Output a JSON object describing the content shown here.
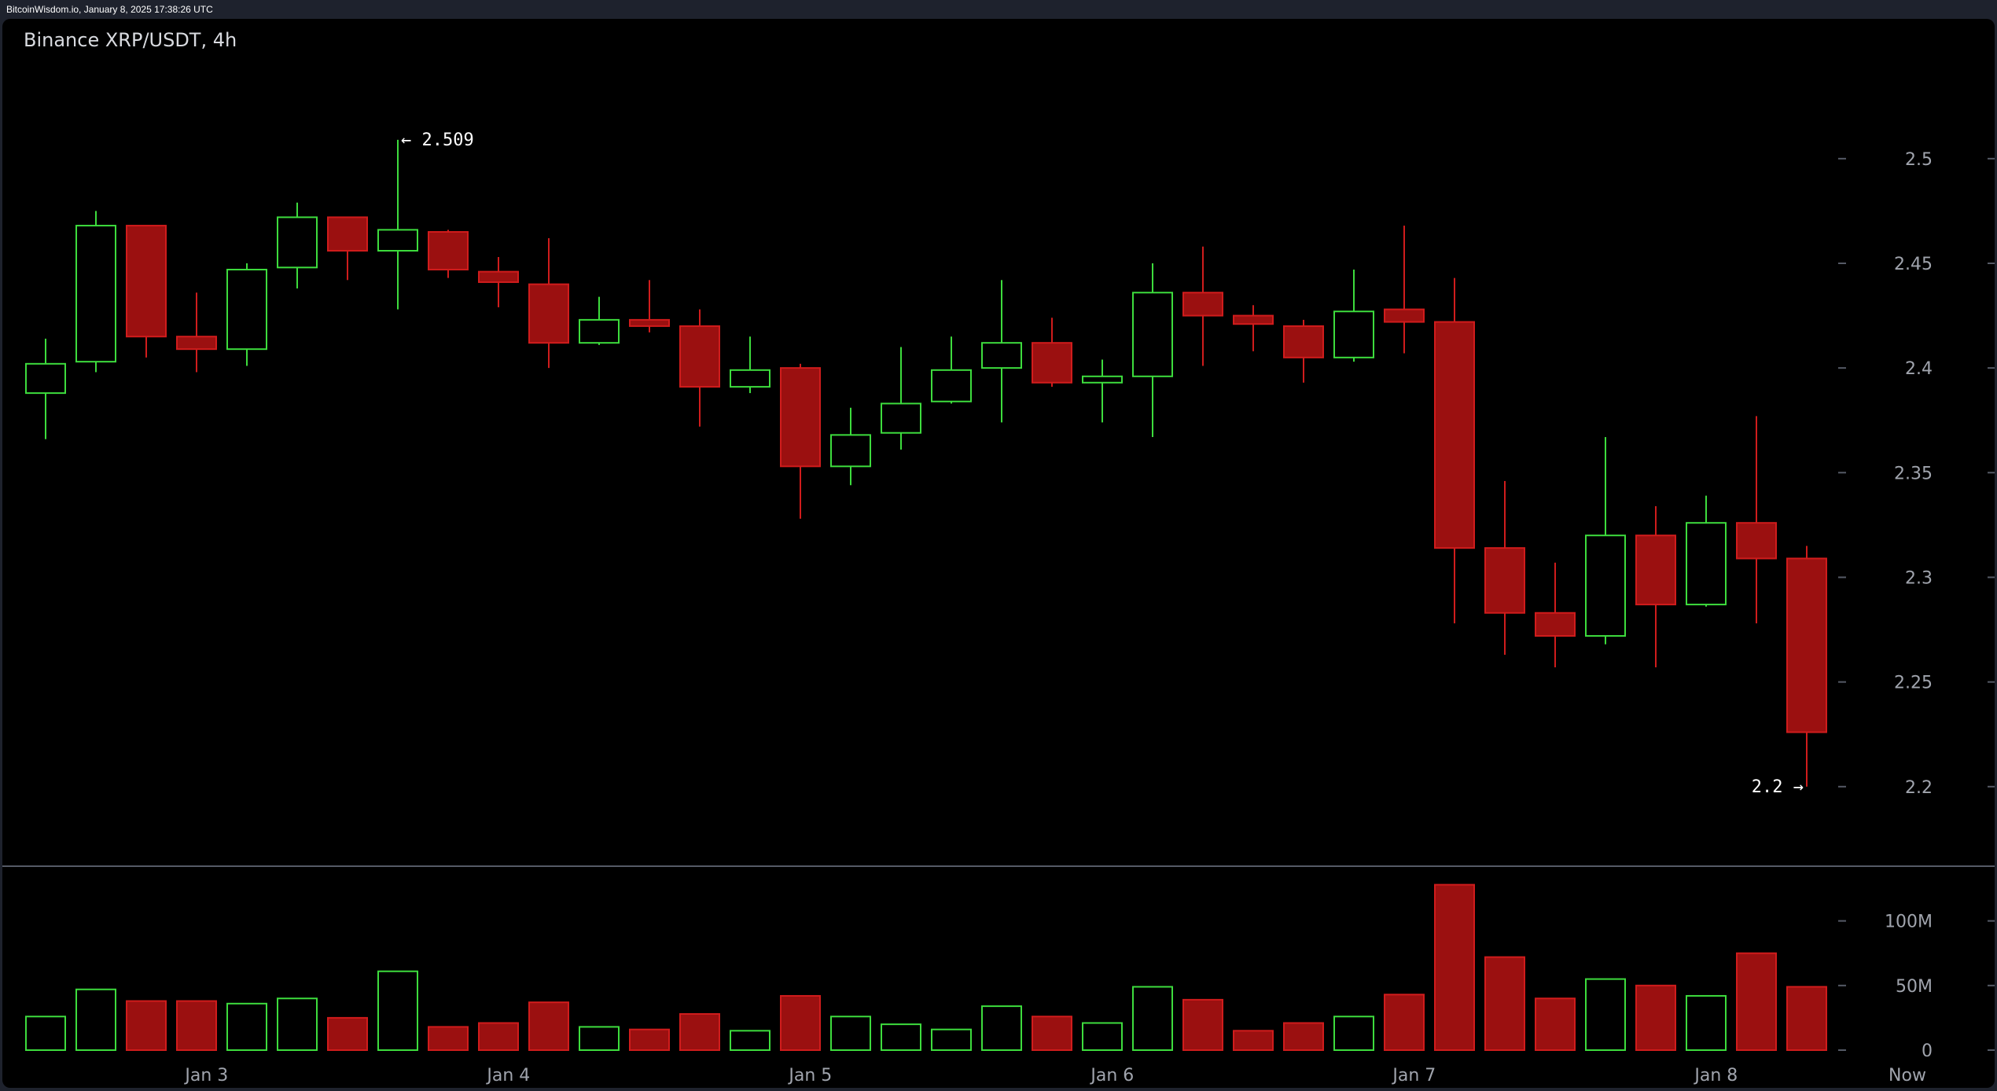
{
  "header": {
    "text": "BitcoinWisdom.io, January 8, 2025 17:38:26 UTC"
  },
  "colors": {
    "up": "#3ddc3d",
    "down": "#9b1010",
    "down_border": "#d01c1c",
    "background": "#000000",
    "axis_text": "#a0a4ad"
  },
  "chart_data": [
    {
      "type": "candlestick",
      "title": "Binance XRP/USDT, 4h",
      "price_axis": {
        "ticks": [
          2.2,
          2.25,
          2.3,
          2.35,
          2.4,
          2.45,
          2.5
        ],
        "tick_labels": [
          "2.2",
          "2.25",
          "2.3",
          "2.35",
          "2.4",
          "2.45",
          "2.5"
        ],
        "range": [
          2.168,
          2.548
        ]
      },
      "x_axis": {
        "labels": [
          "Jan 3",
          "Jan 4",
          "Jan 5",
          "Jan 6",
          "Jan 7",
          "Jan 8",
          "Now"
        ],
        "label_candle_positions": [
          3.2,
          9.2,
          15.2,
          21.2,
          27.2,
          33.2,
          37.0
        ]
      },
      "annotations": {
        "high": {
          "label": "← 2.509",
          "value": 2.509,
          "candle": 7
        },
        "low": {
          "label": "2.2 →",
          "value": 2.2,
          "candle": 35
        }
      },
      "candles": [
        {
          "o": 2.388,
          "h": 2.414,
          "l": 2.366,
          "c": 2.402
        },
        {
          "o": 2.403,
          "h": 2.475,
          "l": 2.398,
          "c": 2.468
        },
        {
          "o": 2.468,
          "h": 2.468,
          "l": 2.405,
          "c": 2.415
        },
        {
          "o": 2.415,
          "h": 2.436,
          "l": 2.398,
          "c": 2.409
        },
        {
          "o": 2.409,
          "h": 2.45,
          "l": 2.401,
          "c": 2.447
        },
        {
          "o": 2.448,
          "h": 2.479,
          "l": 2.438,
          "c": 2.472
        },
        {
          "o": 2.472,
          "h": 2.472,
          "l": 2.442,
          "c": 2.456
        },
        {
          "o": 2.456,
          "h": 2.509,
          "l": 2.428,
          "c": 2.466
        },
        {
          "o": 2.465,
          "h": 2.466,
          "l": 2.443,
          "c": 2.447
        },
        {
          "o": 2.446,
          "h": 2.453,
          "l": 2.429,
          "c": 2.441
        },
        {
          "o": 2.44,
          "h": 2.462,
          "l": 2.4,
          "c": 2.412
        },
        {
          "o": 2.412,
          "h": 2.434,
          "l": 2.411,
          "c": 2.423
        },
        {
          "o": 2.423,
          "h": 2.442,
          "l": 2.417,
          "c": 2.42
        },
        {
          "o": 2.42,
          "h": 2.428,
          "l": 2.372,
          "c": 2.391
        },
        {
          "o": 2.391,
          "h": 2.415,
          "l": 2.388,
          "c": 2.399
        },
        {
          "o": 2.4,
          "h": 2.402,
          "l": 2.328,
          "c": 2.353
        },
        {
          "o": 2.353,
          "h": 2.381,
          "l": 2.344,
          "c": 2.368
        },
        {
          "o": 2.369,
          "h": 2.41,
          "l": 2.361,
          "c": 2.383
        },
        {
          "o": 2.384,
          "h": 2.415,
          "l": 2.383,
          "c": 2.399
        },
        {
          "o": 2.4,
          "h": 2.442,
          "l": 2.374,
          "c": 2.412
        },
        {
          "o": 2.412,
          "h": 2.424,
          "l": 2.391,
          "c": 2.393
        },
        {
          "o": 2.393,
          "h": 2.404,
          "l": 2.374,
          "c": 2.396
        },
        {
          "o": 2.396,
          "h": 2.45,
          "l": 2.367,
          "c": 2.436
        },
        {
          "o": 2.436,
          "h": 2.458,
          "l": 2.401,
          "c": 2.425
        },
        {
          "o": 2.425,
          "h": 2.43,
          "l": 2.408,
          "c": 2.421
        },
        {
          "o": 2.42,
          "h": 2.423,
          "l": 2.393,
          "c": 2.405
        },
        {
          "o": 2.405,
          "h": 2.447,
          "l": 2.403,
          "c": 2.427
        },
        {
          "o": 2.428,
          "h": 2.468,
          "l": 2.407,
          "c": 2.422
        },
        {
          "o": 2.422,
          "h": 2.443,
          "l": 2.278,
          "c": 2.314
        },
        {
          "o": 2.314,
          "h": 2.346,
          "l": 2.263,
          "c": 2.283
        },
        {
          "o": 2.283,
          "h": 2.307,
          "l": 2.257,
          "c": 2.272
        },
        {
          "o": 2.272,
          "h": 2.367,
          "l": 2.268,
          "c": 2.32
        },
        {
          "o": 2.32,
          "h": 2.334,
          "l": 2.257,
          "c": 2.287
        },
        {
          "o": 2.287,
          "h": 2.339,
          "l": 2.286,
          "c": 2.326
        },
        {
          "o": 2.326,
          "h": 2.377,
          "l": 2.278,
          "c": 2.309
        },
        {
          "o": 2.309,
          "h": 2.315,
          "l": 2.2,
          "c": 2.226
        }
      ],
      "volume_axis": {
        "ticks": [
          0,
          50,
          100
        ],
        "tick_labels": [
          "0",
          "50M",
          "100M"
        ],
        "range": [
          0,
          132
        ]
      },
      "volumes_millions": [
        26,
        47,
        38,
        38,
        36,
        40,
        25,
        61,
        18,
        21,
        37,
        18,
        16,
        28,
        15,
        42,
        26,
        20,
        16,
        34,
        26,
        21,
        49,
        39,
        15,
        21,
        26,
        43,
        128,
        72,
        40,
        55,
        50,
        42,
        75,
        49
      ]
    }
  ]
}
